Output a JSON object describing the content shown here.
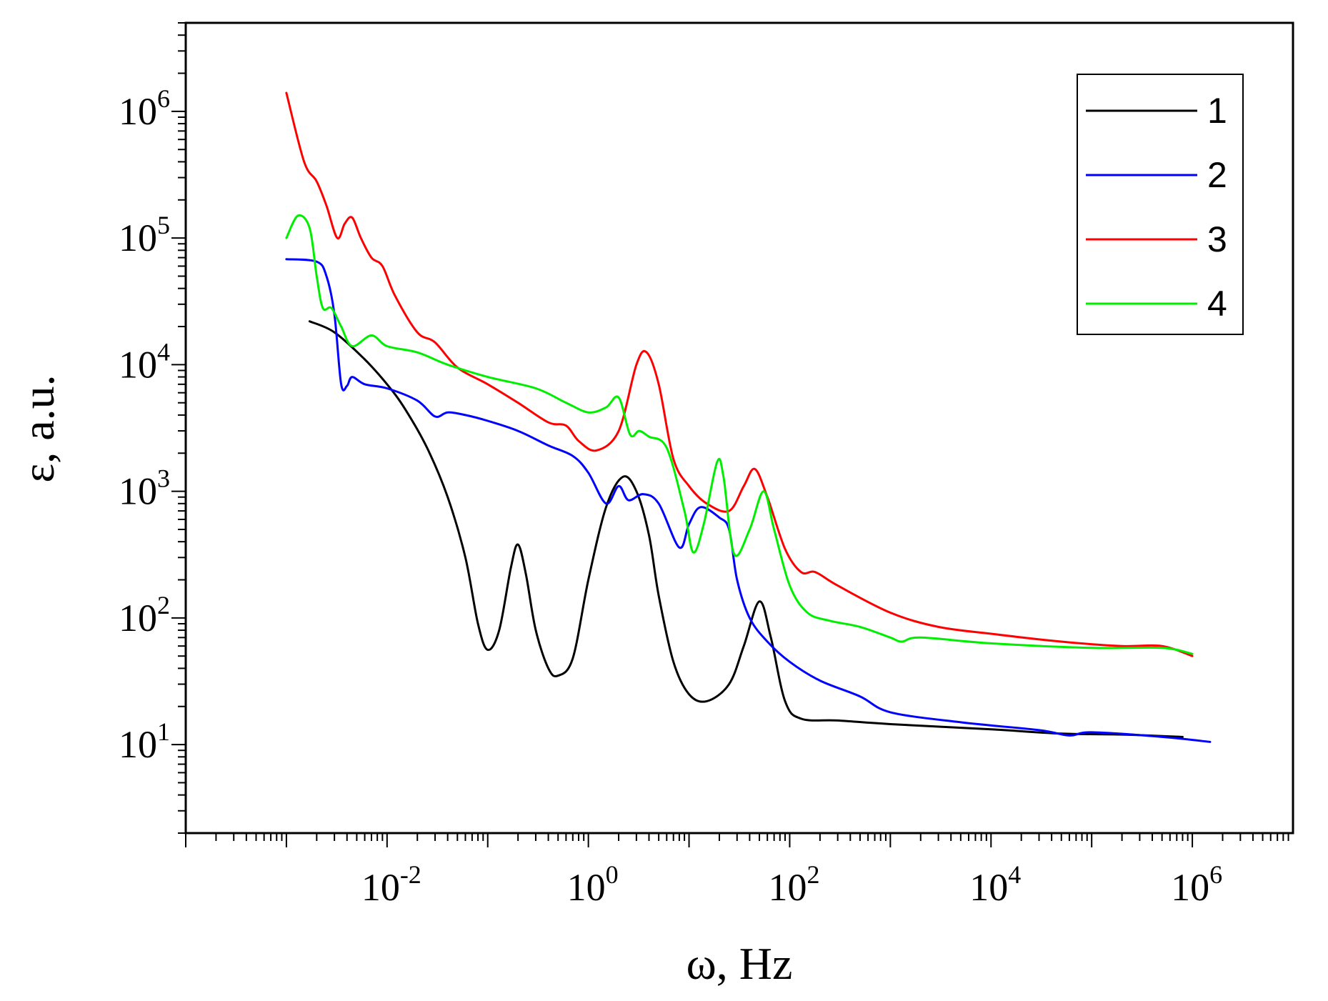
{
  "chart_data": {
    "type": "line",
    "title": "",
    "xlabel": "ω, Hz",
    "ylabel": "ε, a.u.",
    "xscale": "log",
    "yscale": "log",
    "xlim": [
      0.0001,
      10000000
    ],
    "ylim": [
      2,
      5000000
    ],
    "x_ticks": [
      {
        "value": 0.01,
        "base": "10",
        "exp": "-2"
      },
      {
        "value": 1,
        "base": "10",
        "exp": "0"
      },
      {
        "value": 100,
        "base": "10",
        "exp": "2"
      },
      {
        "value": 10000,
        "base": "10",
        "exp": "4"
      },
      {
        "value": 1000000,
        "base": "10",
        "exp": "6"
      }
    ],
    "y_ticks": [
      {
        "value": 10,
        "base": "10",
        "exp": "1"
      },
      {
        "value": 100,
        "base": "10",
        "exp": "2"
      },
      {
        "value": 1000,
        "base": "10",
        "exp": "3"
      },
      {
        "value": 10000,
        "base": "10",
        "exp": "4"
      },
      {
        "value": 100000,
        "base": "10",
        "exp": "5"
      },
      {
        "value": 1000000,
        "base": "10",
        "exp": "6"
      }
    ],
    "legend_position": "top-right",
    "series": [
      {
        "name": "1",
        "color": "#000000",
        "points": [
          [
            0.0017,
            22000
          ],
          [
            0.003,
            18000
          ],
          [
            0.006,
            11000
          ],
          [
            0.01,
            7000
          ],
          [
            0.015,
            4500
          ],
          [
            0.025,
            2200
          ],
          [
            0.04,
            900
          ],
          [
            0.06,
            300
          ],
          [
            0.08,
            90
          ],
          [
            0.1,
            56
          ],
          [
            0.13,
            80
          ],
          [
            0.17,
            250
          ],
          [
            0.2,
            380
          ],
          [
            0.24,
            220
          ],
          [
            0.3,
            80
          ],
          [
            0.4,
            40
          ],
          [
            0.5,
            35
          ],
          [
            0.7,
            48
          ],
          [
            1.0,
            200
          ],
          [
            1.5,
            750
          ],
          [
            2.2,
            1300
          ],
          [
            3.0,
            1000
          ],
          [
            4.0,
            450
          ],
          [
            5.0,
            150
          ],
          [
            7.0,
            45
          ],
          [
            10.0,
            25
          ],
          [
            15.0,
            22
          ],
          [
            25.0,
            30
          ],
          [
            35.0,
            60
          ],
          [
            50.0,
            135
          ],
          [
            65.0,
            70
          ],
          [
            90.0,
            22
          ],
          [
            130.0,
            16
          ],
          [
            300.0,
            15.5
          ],
          [
            1000.0,
            14.5
          ],
          [
            10000.0,
            13.2
          ],
          [
            50000.0,
            12.2
          ],
          [
            200000.0,
            12.0
          ],
          [
            800000.0,
            11.5
          ]
        ]
      },
      {
        "name": "2",
        "color": "#0000ff",
        "points": [
          [
            0.001,
            68000
          ],
          [
            0.002,
            65000
          ],
          [
            0.0025,
            50000
          ],
          [
            0.003,
            25000
          ],
          [
            0.0035,
            7000
          ],
          [
            0.004,
            6800
          ],
          [
            0.0045,
            8000
          ],
          [
            0.006,
            7000
          ],
          [
            0.01,
            6500
          ],
          [
            0.02,
            5200
          ],
          [
            0.03,
            3900
          ],
          [
            0.04,
            4200
          ],
          [
            0.06,
            4000
          ],
          [
            0.1,
            3600
          ],
          [
            0.2,
            3000
          ],
          [
            0.4,
            2300
          ],
          [
            0.7,
            1900
          ],
          [
            1.0,
            1400
          ],
          [
            1.5,
            800
          ],
          [
            2.0,
            1100
          ],
          [
            2.5,
            850
          ],
          [
            3.5,
            950
          ],
          [
            5.0,
            800
          ],
          [
            8.0,
            360
          ],
          [
            10.0,
            550
          ],
          [
            13.0,
            750
          ],
          [
            20.0,
            620
          ],
          [
            25.0,
            500
          ],
          [
            30.0,
            200
          ],
          [
            40.0,
            100
          ],
          [
            60.0,
            65
          ],
          [
            100.0,
            45
          ],
          [
            200.0,
            32
          ],
          [
            500.0,
            24
          ],
          [
            1000.0,
            18
          ],
          [
            5000.0,
            15
          ],
          [
            30000.0,
            13
          ],
          [
            60000.0,
            11.8
          ],
          [
            100000.0,
            12.5
          ],
          [
            500000.0,
            11.5
          ],
          [
            1500000.0,
            10.5
          ]
        ]
      },
      {
        "name": "3",
        "color": "#ff0000",
        "points": [
          [
            0.001,
            1400000
          ],
          [
            0.0015,
            400000
          ],
          [
            0.002,
            280000
          ],
          [
            0.0025,
            180000
          ],
          [
            0.0032,
            100000
          ],
          [
            0.0038,
            130000
          ],
          [
            0.0045,
            145000
          ],
          [
            0.0055,
            100000
          ],
          [
            0.007,
            70000
          ],
          [
            0.009,
            60000
          ],
          [
            0.012,
            35000
          ],
          [
            0.02,
            18000
          ],
          [
            0.03,
            15000
          ],
          [
            0.05,
            9500
          ],
          [
            0.1,
            7000
          ],
          [
            0.2,
            5000
          ],
          [
            0.4,
            3500
          ],
          [
            0.6,
            3300
          ],
          [
            0.8,
            2500
          ],
          [
            1.2,
            2100
          ],
          [
            2.0,
            3000
          ],
          [
            3.0,
            10000
          ],
          [
            3.8,
            12500
          ],
          [
            5.0,
            7000
          ],
          [
            7.0,
            1800
          ],
          [
            10.0,
            1100
          ],
          [
            15.0,
            800
          ],
          [
            25.0,
            700
          ],
          [
            35.0,
            1100
          ],
          [
            45.0,
            1500
          ],
          [
            60.0,
            900
          ],
          [
            90.0,
            350
          ],
          [
            130.0,
            230
          ],
          [
            180.0,
            230
          ],
          [
            300.0,
            180
          ],
          [
            1000.0,
            110
          ],
          [
            3000.0,
            85
          ],
          [
            10000.0,
            75
          ],
          [
            50000.0,
            65
          ],
          [
            200000.0,
            60
          ],
          [
            500000.0,
            60
          ],
          [
            1000000.0,
            50
          ]
        ]
      },
      {
        "name": "4",
        "color": "#00ee00",
        "points": [
          [
            0.001,
            100000
          ],
          [
            0.0013,
            150000
          ],
          [
            0.0017,
            120000
          ],
          [
            0.002,
            50000
          ],
          [
            0.0023,
            28000
          ],
          [
            0.0028,
            28000
          ],
          [
            0.0035,
            20000
          ],
          [
            0.0045,
            14000
          ],
          [
            0.007,
            17000
          ],
          [
            0.01,
            14000
          ],
          [
            0.02,
            12500
          ],
          [
            0.04,
            10000
          ],
          [
            0.1,
            8000
          ],
          [
            0.3,
            6500
          ],
          [
            0.6,
            5000
          ],
          [
            1.0,
            4200
          ],
          [
            1.5,
            4600
          ],
          [
            2.0,
            5500
          ],
          [
            2.6,
            2800
          ],
          [
            3.2,
            3000
          ],
          [
            4.0,
            2700
          ],
          [
            6.0,
            2200
          ],
          [
            9.0,
            700
          ],
          [
            11.0,
            330
          ],
          [
            14.0,
            550
          ],
          [
            19.0,
            1700
          ],
          [
            22.0,
            1300
          ],
          [
            28.0,
            320
          ],
          [
            40.0,
            500
          ],
          [
            55.0,
            1000
          ],
          [
            70.0,
            500
          ],
          [
            100.0,
            180
          ],
          [
            150.0,
            110
          ],
          [
            250.0,
            95
          ],
          [
            500.0,
            85
          ],
          [
            1000.0,
            70
          ],
          [
            1300.0,
            65
          ],
          [
            2000.0,
            70
          ],
          [
            10000.0,
            63
          ],
          [
            100000.0,
            58
          ],
          [
            500000.0,
            58
          ],
          [
            1000000.0,
            52
          ]
        ]
      }
    ]
  }
}
